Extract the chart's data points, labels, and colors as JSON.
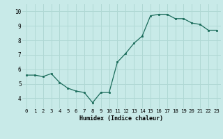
{
  "x": [
    0,
    1,
    2,
    3,
    4,
    5,
    6,
    7,
    8,
    9,
    10,
    11,
    12,
    13,
    14,
    15,
    16,
    17,
    18,
    19,
    20,
    21,
    22,
    23
  ],
  "y": [
    5.6,
    5.6,
    5.5,
    5.7,
    5.1,
    4.7,
    4.5,
    4.4,
    3.7,
    4.4,
    4.4,
    6.5,
    7.1,
    7.8,
    8.3,
    9.7,
    9.8,
    9.8,
    9.5,
    9.5,
    9.2,
    9.1,
    8.7,
    8.7
  ],
  "xlabel": "Humidex (Indice chaleur)",
  "ylim": [
    3.3,
    10.5
  ],
  "xlim": [
    -0.5,
    23.5
  ],
  "yticks": [
    4,
    5,
    6,
    7,
    8,
    9,
    10
  ],
  "xticks": [
    0,
    1,
    2,
    3,
    4,
    5,
    6,
    7,
    8,
    9,
    10,
    11,
    12,
    13,
    14,
    15,
    16,
    17,
    18,
    19,
    20,
    21,
    22,
    23
  ],
  "line_color": "#1a6b5a",
  "marker_color": "#1a6b5a",
  "bg_color": "#c8eae8",
  "grid_color": "#b0d8d4",
  "xlabel_fontsize": 6.0,
  "tick_fontsize": 5.2
}
